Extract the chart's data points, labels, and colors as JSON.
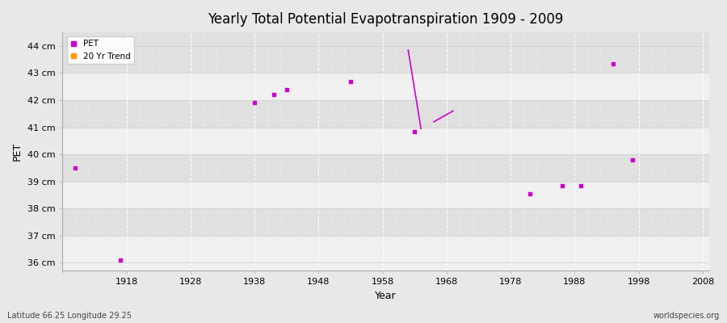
{
  "title": "Yearly Total Potential Evapotranspiration 1909 - 2009",
  "xlabel": "Year",
  "ylabel": "PET",
  "bottom_left_label": "Latitude 66.25 Longitude 29.25",
  "bottom_right_label": "worldspecies.org",
  "xlim": [
    1908,
    2009
  ],
  "ylim": [
    35.7,
    44.5
  ],
  "yticks": [
    36,
    37,
    38,
    39,
    40,
    41,
    42,
    43,
    44
  ],
  "ytick_labels": [
    "36 cm",
    "37 cm",
    "38 cm",
    "39 cm",
    "40 cm",
    "41 cm",
    "42 cm",
    "43 cm",
    "44 cm"
  ],
  "xticks": [
    1908,
    1918,
    1928,
    1938,
    1948,
    1958,
    1968,
    1978,
    1988,
    1998,
    2008
  ],
  "fig_bg_color": "#e8e8e8",
  "plot_bg_color": "#ebebeb",
  "band_color_light": "#f0f0f0",
  "band_color_dark": "#e0e0e0",
  "grid_color": "#ffffff",
  "pet_color": "#cc00cc",
  "trend_color": "#ff9900",
  "pet_points": [
    [
      1910,
      39.5
    ],
    [
      1917,
      36.1
    ],
    [
      1938,
      41.9
    ],
    [
      1941,
      42.2
    ],
    [
      1943,
      42.4
    ],
    [
      1953,
      42.7
    ],
    [
      1963,
      40.85
    ],
    [
      1981,
      38.55
    ],
    [
      1986,
      38.85
    ],
    [
      1989,
      38.85
    ],
    [
      1994,
      43.35
    ],
    [
      1997,
      39.8
    ]
  ],
  "trend_line1": [
    [
      1962,
      43.85
    ],
    [
      1964,
      40.95
    ]
  ],
  "trend_line2": [
    [
      1966,
      41.2
    ],
    [
      1969,
      41.6
    ]
  ]
}
